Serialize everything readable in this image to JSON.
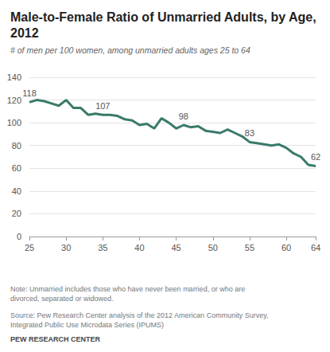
{
  "chart_data": {
    "type": "line",
    "title": "Male-to-Female Ratio of Unmarried Adults, by Age, 2012",
    "subtitle": "# of men per 100 women, among unmarried adults ages 25 to 64",
    "note": "Note: Unmarried includes those who have never been married, or who are divorced, separated or widowed.",
    "source": "Source: Pew Research Center analysis of the 2012 American Community Survey, Integrated Public Use Microdata Series (IPUMS)",
    "credit": "PEW RESEARCH CENTER",
    "x": [
      25,
      26,
      27,
      28,
      29,
      30,
      31,
      32,
      33,
      34,
      35,
      36,
      37,
      38,
      39,
      40,
      41,
      42,
      43,
      44,
      45,
      46,
      47,
      48,
      49,
      50,
      51,
      52,
      53,
      54,
      55,
      56,
      57,
      58,
      59,
      60,
      61,
      62,
      63,
      64
    ],
    "values": [
      118,
      120,
      119,
      117,
      115,
      120,
      113,
      113,
      107,
      108,
      107,
      107,
      106,
      103,
      102,
      98,
      99,
      95,
      104,
      100,
      95,
      98,
      96,
      97,
      93,
      92,
      91,
      94,
      91,
      88,
      83,
      82,
      81,
      80,
      81,
      78,
      73,
      70,
      63,
      62
    ],
    "annotations": [
      {
        "x": 25,
        "text": "118"
      },
      {
        "x": 35,
        "text": "107"
      },
      {
        "x": 46,
        "text": "98"
      },
      {
        "x": 55,
        "text": "83"
      },
      {
        "x": 64,
        "text": "62"
      }
    ],
    "color": "#3a7a6a",
    "xlim": [
      25,
      64
    ],
    "xticks": [
      25,
      30,
      35,
      40,
      45,
      50,
      55,
      60,
      64
    ],
    "ylim": [
      0,
      140
    ],
    "yticks": [
      0,
      20,
      40,
      60,
      80,
      100,
      120,
      140
    ],
    "grid": true
  }
}
